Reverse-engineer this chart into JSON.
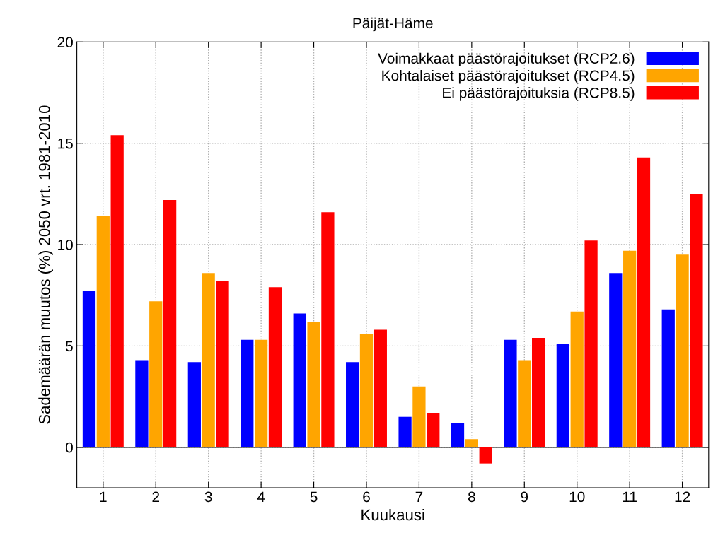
{
  "chart_data": {
    "type": "bar",
    "title": "Päijät-Häme",
    "xlabel": "Kuukausi",
    "ylabel": "Sademäärän muutos (%) 2050 vrt. 1981-2010",
    "categories": [
      "1",
      "2",
      "3",
      "4",
      "5",
      "6",
      "7",
      "8",
      "9",
      "10",
      "11",
      "12"
    ],
    "series": [
      {
        "name": "Voimakkaat päästörajoitukset (RCP2.6)",
        "color": "#0000ff",
        "values": [
          7.7,
          4.3,
          4.2,
          5.3,
          6.6,
          4.2,
          1.5,
          1.2,
          5.3,
          5.1,
          8.6,
          6.8
        ]
      },
      {
        "name": "Kohtalaiset päästörajoitukset (RCP4.5)",
        "color": "#ffa500",
        "values": [
          11.4,
          7.2,
          8.6,
          5.3,
          6.2,
          5.6,
          3.0,
          0.4,
          4.3,
          6.7,
          9.7,
          9.5
        ]
      },
      {
        "name": "Ei päästörajoituksia (RCP8.5)",
        "color": "#ff0000",
        "values": [
          15.4,
          12.2,
          8.2,
          7.9,
          11.6,
          5.8,
          1.7,
          -0.8,
          5.4,
          10.2,
          14.3,
          12.5
        ]
      }
    ],
    "ylim": [
      -2,
      20
    ],
    "yticks": [
      0,
      5,
      10,
      15,
      20
    ],
    "grid": true,
    "legend": "top right"
  }
}
